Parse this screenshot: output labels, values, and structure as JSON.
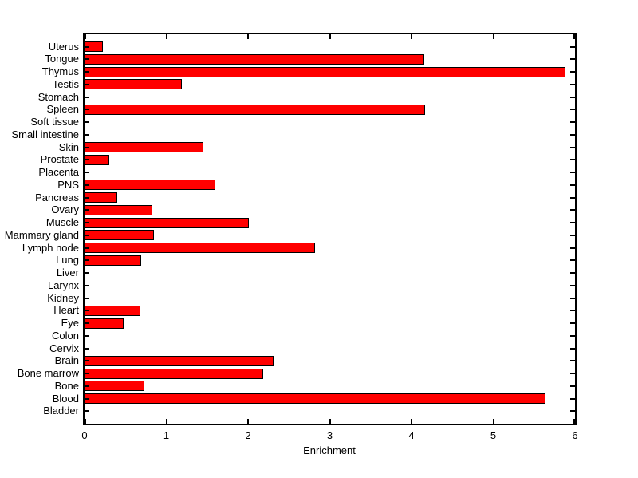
{
  "figure": {
    "background_color": "#ffffff",
    "axis_color": "#000000"
  },
  "chart_data": {
    "type": "bar",
    "orientation": "horizontal",
    "title": "",
    "xlabel": "Enrichment",
    "ylabel": "",
    "xlim": [
      0,
      6
    ],
    "x_ticks": [
      0,
      1,
      2,
      3,
      4,
      5,
      6
    ],
    "grid": false,
    "legend": null,
    "bar_color": "#ff0000",
    "bar_edge_color": "#000000",
    "categories": [
      "Uterus",
      "Tongue",
      "Thymus",
      "Testis",
      "Stomach",
      "Spleen",
      "Soft tissue",
      "Small intestine",
      "Skin",
      "Prostate",
      "Placenta",
      "PNS",
      "Pancreas",
      "Ovary",
      "Muscle",
      "Mammary gland",
      "Lymph node",
      "Lung",
      "Liver",
      "Larynx",
      "Kidney",
      "Heart",
      "Eye",
      "Colon",
      "Cervix",
      "Brain",
      "Bone marrow",
      "Bone",
      "Blood",
      "Bladder"
    ],
    "values": [
      0.22,
      4.16,
      5.88,
      1.19,
      0,
      4.17,
      0,
      0,
      1.45,
      0.3,
      0,
      1.6,
      0.4,
      0.83,
      2.01,
      0.85,
      2.82,
      0.69,
      0,
      0,
      0,
      0.68,
      0.48,
      0,
      0,
      2.31,
      2.19,
      0.73,
      5.64,
      0
    ]
  }
}
